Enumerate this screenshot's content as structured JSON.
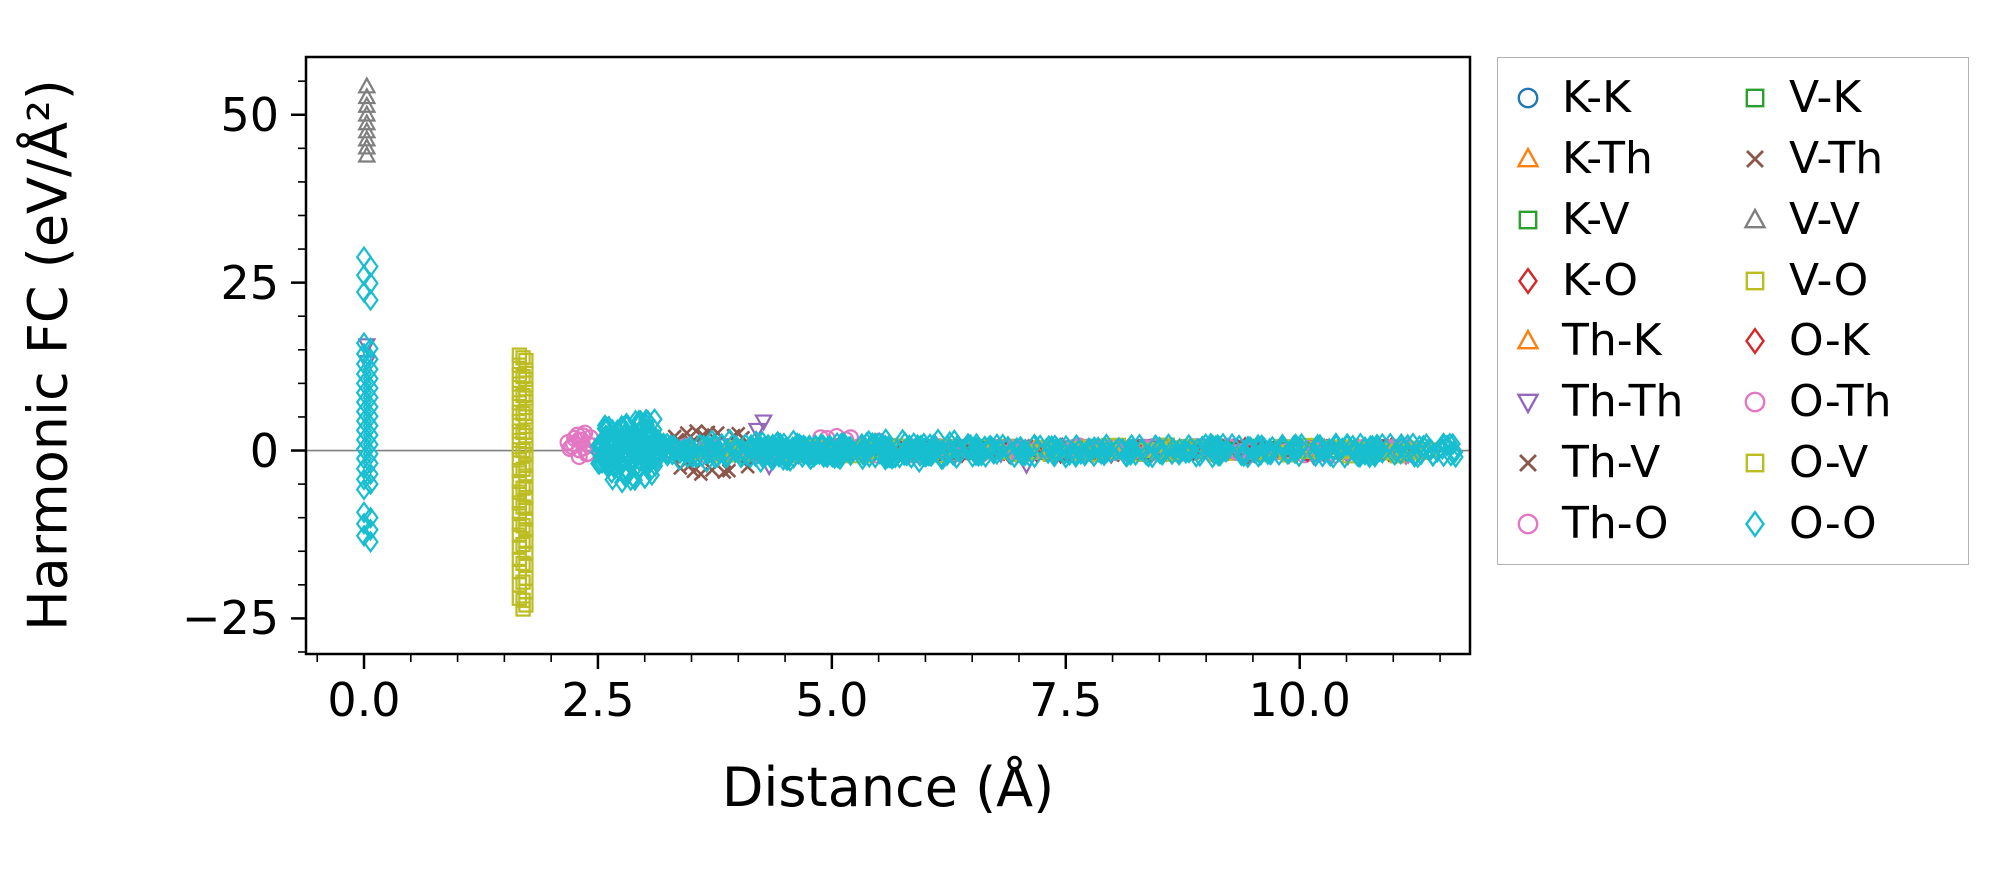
{
  "chart_data": {
    "type": "scatter",
    "title": "",
    "xlabel": "Distance (Å)",
    "ylabel": "Harmonic FC (eV/Å²)",
    "xlim": [
      -0.62,
      11.82
    ],
    "ylim": [
      -30.3,
      58.6
    ],
    "x_ticks": [
      0.0,
      2.5,
      5.0,
      7.5,
      10.0
    ],
    "x_tick_labels": [
      "0.0",
      "2.5",
      "5.0",
      "7.5",
      "10.0"
    ],
    "y_ticks": [
      -25,
      0,
      25,
      50
    ],
    "y_tick_labels": [
      "−25",
      "0",
      "25",
      "50"
    ],
    "x_minor_step": 0.5,
    "y_minor_step": 5,
    "zero_line": true,
    "zero_line_color": "#808080",
    "frame_color": "#000000",
    "legend_position": "outside-right",
    "legend_columns": 2,
    "seed": 42,
    "series": [
      {
        "name": "K-K",
        "color": "#1f77b4",
        "marker": "circle",
        "points": [],
        "bands": [
          {
            "x": [
              4.3,
              11.2
            ],
            "y": [
              -0.35,
              0.35
            ],
            "n": 35
          }
        ]
      },
      {
        "name": "K-Th",
        "color": "#ff7f0e",
        "marker": "triangle-up",
        "points": [],
        "bands": [
          {
            "x": [
              4.0,
              11.3
            ],
            "y": [
              -0.45,
              0.45
            ],
            "n": 45
          }
        ]
      },
      {
        "name": "K-V",
        "color": "#2ca02c",
        "marker": "square",
        "points": [],
        "bands": [
          {
            "x": [
              4.0,
              11.2
            ],
            "y": [
              -0.35,
              0.35
            ],
            "n": 35
          }
        ]
      },
      {
        "name": "K-O",
        "color": "#d62728",
        "marker": "diamond",
        "points": [
          [
            10.88,
            0.05
          ],
          [
            10.95,
            -0.1
          ]
        ],
        "bands": [
          {
            "x": [
              4.5,
              11.1
            ],
            "y": [
              -0.45,
              0.45
            ],
            "n": 35
          }
        ]
      },
      {
        "name": "Th-K",
        "color": "#ff7f0e",
        "marker": "triangle-up",
        "points": [],
        "bands": [
          {
            "x": [
              4.2,
              11.2
            ],
            "y": [
              -0.4,
              0.4
            ],
            "n": 30
          }
        ]
      },
      {
        "name": "Th-Th",
        "color": "#9467bd",
        "marker": "triangle-down",
        "points": [
          [
            0.03,
            15.7
          ],
          [
            0.03,
            13.2
          ],
          [
            4.27,
            4.35
          ],
          [
            4.2,
            3.1
          ],
          [
            4.33,
            -2.3
          ],
          [
            7.08,
            -2.1
          ]
        ],
        "bands": [
          {
            "x": [
              3.6,
              11.2
            ],
            "y": [
              -0.8,
              0.8
            ],
            "n": 70
          }
        ]
      },
      {
        "name": "Th-V",
        "color": "#8c564b",
        "marker": "x",
        "points": [
          [
            3.32,
            2.1
          ],
          [
            3.45,
            2.6
          ],
          [
            3.55,
            2.9
          ],
          [
            3.62,
            2.3
          ],
          [
            3.78,
            2.6
          ],
          [
            3.95,
            2.2
          ],
          [
            4.05,
            1.9
          ],
          [
            3.38,
            -2.6
          ],
          [
            3.52,
            -3.1
          ],
          [
            3.6,
            -3.5
          ],
          [
            3.72,
            -2.9
          ],
          [
            3.85,
            -3.2
          ],
          [
            3.3,
            -0.9
          ],
          [
            3.5,
            1.2
          ]
        ],
        "bands": [
          {
            "x": [
              3.3,
              11.2
            ],
            "y": [
              -0.7,
              0.7
            ],
            "n": 60
          }
        ]
      },
      {
        "name": "Th-O",
        "color": "#e377c2",
        "marker": "circle",
        "points": [
          [
            2.18,
            1.2
          ],
          [
            2.22,
            0.6
          ],
          [
            2.25,
            1.8
          ],
          [
            2.28,
            2.3
          ],
          [
            2.3,
            0.1
          ],
          [
            2.33,
            1.5
          ],
          [
            2.36,
            2.6
          ],
          [
            2.38,
            -0.5
          ],
          [
            2.4,
            0.9
          ],
          [
            2.42,
            1.9
          ],
          [
            2.3,
            -0.9
          ],
          [
            2.35,
            0.4
          ],
          [
            4.88,
            1.9
          ],
          [
            5.05,
            2.1
          ],
          [
            5.15,
            1.6
          ],
          [
            5.5,
            1.4
          ]
        ],
        "bands": [
          {
            "x": [
              2.9,
              11.3
            ],
            "y": [
              -0.7,
              0.7
            ],
            "n": 80
          }
        ]
      },
      {
        "name": "V-K",
        "color": "#2ca02c",
        "marker": "square",
        "points": [],
        "bands": [
          {
            "x": [
              4.1,
              11.15
            ],
            "y": [
              -0.35,
              0.35
            ],
            "n": 30
          }
        ]
      },
      {
        "name": "V-Th",
        "color": "#8c564b",
        "marker": "x",
        "points": [
          [
            3.35,
            1.6
          ],
          [
            3.48,
            -2.2
          ],
          [
            3.68,
            2.7
          ],
          [
            3.9,
            -3.0
          ],
          [
            4.0,
            2.5
          ],
          [
            4.1,
            -2.4
          ]
        ],
        "bands": [
          {
            "x": [
              3.4,
              11.1
            ],
            "y": [
              -0.7,
              0.7
            ],
            "n": 50
          }
        ]
      },
      {
        "name": "V-V",
        "color": "#7f7f7f",
        "marker": "triangle-up",
        "points": [
          [
            0.03,
            54.2
          ],
          [
            0.03,
            52.6
          ],
          [
            0.03,
            51.3
          ],
          [
            0.03,
            50.0
          ],
          [
            0.03,
            48.7
          ],
          [
            0.03,
            47.5
          ],
          [
            0.03,
            46.3
          ],
          [
            0.03,
            45.1
          ],
          [
            0.03,
            43.9
          ]
        ],
        "bands": [
          {
            "x": [
              3.8,
              11.2
            ],
            "y": [
              -0.45,
              0.45
            ],
            "n": 40
          }
        ]
      },
      {
        "name": "V-O",
        "color": "#bcbd22",
        "marker": "square",
        "points": [
          [
            1.66,
            14.2
          ],
          [
            1.73,
            13.4
          ],
          [
            1.66,
            12.7
          ],
          [
            1.73,
            12.0
          ],
          [
            1.66,
            11.3
          ],
          [
            1.73,
            10.6
          ],
          [
            1.66,
            9.9
          ],
          [
            1.73,
            9.2
          ],
          [
            1.66,
            8.5
          ],
          [
            1.73,
            7.8
          ],
          [
            1.66,
            7.1
          ],
          [
            1.73,
            6.4
          ],
          [
            1.66,
            5.7
          ],
          [
            1.73,
            5.0
          ],
          [
            1.66,
            4.3
          ],
          [
            1.73,
            3.6
          ],
          [
            1.66,
            2.9
          ],
          [
            1.73,
            2.2
          ],
          [
            1.66,
            1.5
          ],
          [
            1.73,
            0.8
          ],
          [
            1.66,
            0.1
          ],
          [
            1.73,
            -0.6
          ],
          [
            1.66,
            -1.4
          ],
          [
            1.73,
            -2.2
          ],
          [
            1.66,
            -3.0
          ],
          [
            1.73,
            -3.8
          ],
          [
            1.66,
            -4.6
          ],
          [
            1.73,
            -5.4
          ],
          [
            1.66,
            -6.2
          ],
          [
            1.73,
            -7.0
          ],
          [
            1.66,
            -7.8
          ],
          [
            1.73,
            -8.6
          ],
          [
            1.66,
            -9.4
          ],
          [
            1.73,
            -10.2
          ],
          [
            1.66,
            -11.0
          ],
          [
            1.73,
            -11.8
          ],
          [
            1.66,
            -12.6
          ],
          [
            1.73,
            -13.5
          ],
          [
            1.66,
            -14.4
          ],
          [
            1.73,
            -15.3
          ],
          [
            1.66,
            -16.2
          ],
          [
            1.73,
            -17.1
          ],
          [
            1.66,
            -18.0
          ],
          [
            1.73,
            -19.0
          ],
          [
            1.66,
            -20.0
          ],
          [
            1.73,
            -21.0
          ],
          [
            1.66,
            -22.0
          ],
          [
            1.73,
            -23.0
          ],
          [
            1.7,
            -23.6
          ],
          [
            11.22,
            0.35
          ],
          [
            11.3,
            -0.3
          ],
          [
            11.38,
            0.1
          ]
        ],
        "bands": [
          {
            "x": [
              3.3,
              11.4
            ],
            "y": [
              -0.8,
              0.8
            ],
            "n": 70
          }
        ]
      },
      {
        "name": "O-K",
        "color": "#d62728",
        "marker": "diamond",
        "points": [
          [
            10.9,
            0.0
          ]
        ],
        "bands": [
          {
            "x": [
              4.6,
              11.0
            ],
            "y": [
              -0.4,
              0.4
            ],
            "n": 25
          }
        ]
      },
      {
        "name": "O-Th",
        "color": "#e377c2",
        "marker": "circle",
        "points": [
          [
            2.2,
            0.3
          ],
          [
            2.24,
            1.0
          ],
          [
            2.3,
            1.6
          ],
          [
            2.34,
            2.2
          ],
          [
            2.4,
            -0.4
          ],
          [
            2.44,
            0.7
          ],
          [
            4.95,
            1.8
          ],
          [
            5.2,
            1.9
          ]
        ],
        "bands": [
          {
            "x": [
              3.0,
              11.2
            ],
            "y": [
              -0.7,
              0.7
            ],
            "n": 70
          }
        ]
      },
      {
        "name": "O-V",
        "color": "#bcbd22",
        "marker": "square",
        "points": [
          [
            1.7,
            13.8
          ],
          [
            1.7,
            11.0
          ],
          [
            1.7,
            8.2
          ],
          [
            1.7,
            5.5
          ],
          [
            1.7,
            2.7
          ],
          [
            1.7,
            0.0
          ],
          [
            1.7,
            -2.8
          ],
          [
            1.7,
            -5.6
          ],
          [
            1.7,
            -8.4
          ],
          [
            1.7,
            -11.2
          ],
          [
            1.7,
            -14.0
          ],
          [
            1.7,
            -16.8
          ],
          [
            1.7,
            -19.6
          ],
          [
            1.7,
            -22.3
          ]
        ],
        "bands": [
          {
            "x": [
              3.3,
              11.35
            ],
            "y": [
              -0.8,
              0.8
            ],
            "n": 70
          }
        ]
      },
      {
        "name": "O-O",
        "color": "#17becf",
        "marker": "diamond",
        "points": [
          [
            0.0,
            28.8
          ],
          [
            0.07,
            27.4
          ],
          [
            0.0,
            26.1
          ],
          [
            0.07,
            24.9
          ],
          [
            0.0,
            23.6
          ],
          [
            0.07,
            22.4
          ],
          [
            0.0,
            16.0
          ],
          [
            0.07,
            15.2
          ],
          [
            0.0,
            14.4
          ],
          [
            0.07,
            13.6
          ],
          [
            0.0,
            12.9
          ],
          [
            0.07,
            12.1
          ],
          [
            0.0,
            11.4
          ],
          [
            0.07,
            10.7
          ],
          [
            0.0,
            10.0
          ],
          [
            0.07,
            9.3
          ],
          [
            0.0,
            8.6
          ],
          [
            0.07,
            7.9
          ],
          [
            0.0,
            7.2
          ],
          [
            0.07,
            6.5
          ],
          [
            0.0,
            5.8
          ],
          [
            0.07,
            5.1
          ],
          [
            0.0,
            4.4
          ],
          [
            0.07,
            3.7
          ],
          [
            0.0,
            3.0
          ],
          [
            0.07,
            2.3
          ],
          [
            0.0,
            1.6
          ],
          [
            0.07,
            0.9
          ],
          [
            0.0,
            0.2
          ],
          [
            0.07,
            -0.5
          ],
          [
            0.0,
            -1.2
          ],
          [
            0.07,
            -1.9
          ],
          [
            0.0,
            -2.7
          ],
          [
            0.07,
            -3.5
          ],
          [
            0.0,
            -4.3
          ],
          [
            0.07,
            -5.0
          ],
          [
            0.0,
            -5.8
          ],
          [
            0.0,
            -9.2
          ],
          [
            0.07,
            -10.0
          ],
          [
            0.0,
            -10.9
          ],
          [
            0.07,
            -11.8
          ],
          [
            0.0,
            -12.7
          ],
          [
            0.07,
            -13.6
          ],
          [
            11.65,
            0.0
          ]
        ],
        "bands": [
          {
            "x": [
              2.5,
              3.15
            ],
            "y": [
              -2.3,
              2.3
            ],
            "n": 90
          },
          {
            "x": [
              2.55,
              3.12
            ],
            "y": [
              -4.8,
              4.8
            ],
            "n": 70
          },
          {
            "x": [
              2.9,
              11.68
            ],
            "y": [
              -1.05,
              1.05
            ],
            "n": 420
          },
          {
            "x": [
              4.3,
              5.2
            ],
            "y": [
              -1.5,
              1.5
            ],
            "n": 50
          },
          {
            "x": [
              5.3,
              6.6
            ],
            "y": [
              -1.7,
              1.7
            ],
            "n": 60
          },
          {
            "x": [
              3.2,
              4.6
            ],
            "y": [
              -1.8,
              1.8
            ],
            "n": 30
          }
        ]
      }
    ]
  }
}
